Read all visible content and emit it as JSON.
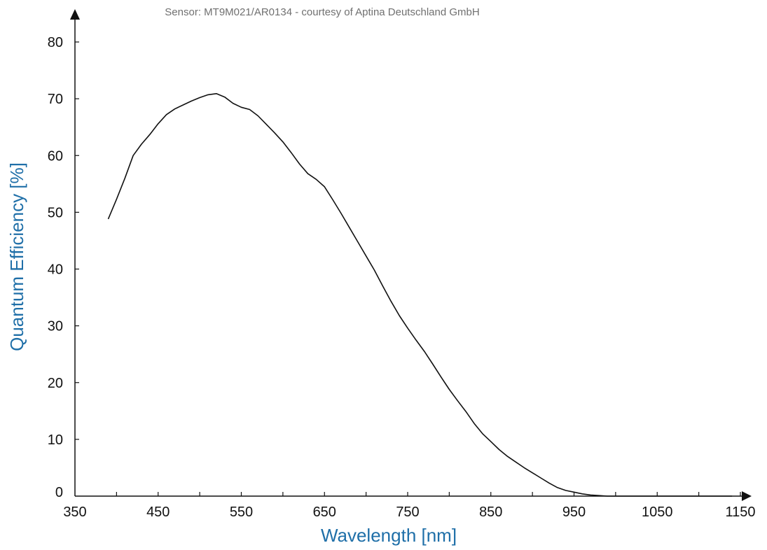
{
  "chart_data": {
    "type": "line",
    "caption": "Sensor: MT9M021/AR0134 - courtesy of Aptina Deutschland GmbH",
    "xlabel": "Wavelength [nm]",
    "ylabel": "Quantum Efficiency [%]",
    "xlim": [
      350,
      1150
    ],
    "ylim": [
      0,
      85
    ],
    "x_ticks": [
      350,
      450,
      550,
      650,
      750,
      850,
      950,
      1050,
      1150
    ],
    "x_minor_ticks": [
      400,
      500,
      600,
      700,
      800,
      900,
      1000,
      1100
    ],
    "y_ticks": [
      0,
      10,
      20,
      30,
      40,
      50,
      60,
      70,
      80
    ],
    "grid": false,
    "colors": {
      "line": "#111111",
      "axis": "#111111",
      "axis_title": "#1f6fa8",
      "caption": "#707070"
    },
    "series": [
      {
        "x": [
          390,
          400,
          410,
          420,
          430,
          440,
          450,
          460,
          470,
          480,
          490,
          500,
          510,
          520,
          530,
          540,
          550,
          560,
          570,
          580,
          590,
          600,
          610,
          620,
          630,
          640,
          650,
          660,
          670,
          680,
          690,
          700,
          710,
          720,
          730,
          740,
          750,
          760,
          770,
          780,
          790,
          800,
          810,
          820,
          830,
          840,
          850,
          860,
          870,
          880,
          890,
          900,
          910,
          920,
          930,
          940,
          950,
          960,
          970,
          980,
          990,
          1000,
          1010,
          1020,
          1030,
          1040,
          1050,
          1060,
          1070,
          1080,
          1090,
          1100,
          1110,
          1120,
          1130,
          1140
        ],
        "y": [
          48.8,
          52.3,
          56.0,
          60.0,
          62.0,
          63.7,
          65.6,
          67.2,
          68.2,
          68.9,
          69.6,
          70.2,
          70.7,
          70.9,
          70.3,
          69.2,
          68.5,
          68.1,
          67.0,
          65.5,
          64.0,
          62.4,
          60.5,
          58.5,
          56.8,
          55.8,
          54.5,
          52.2,
          49.8,
          47.3,
          44.8,
          42.3,
          39.8,
          37.0,
          34.3,
          31.8,
          29.6,
          27.5,
          25.5,
          23.3,
          21.0,
          18.8,
          16.8,
          14.9,
          12.8,
          11.0,
          9.6,
          8.2,
          7.0,
          6.0,
          5.0,
          4.1,
          3.2,
          2.3,
          1.5,
          1.0,
          0.7,
          0.4,
          0.2,
          0.1,
          0.0,
          0.0,
          0.0,
          0.0,
          0.0,
          0.0,
          0.0,
          0.0,
          0.0,
          0.0,
          0.0,
          0.0,
          0.0,
          0.0,
          0.0,
          0.0
        ]
      }
    ]
  }
}
